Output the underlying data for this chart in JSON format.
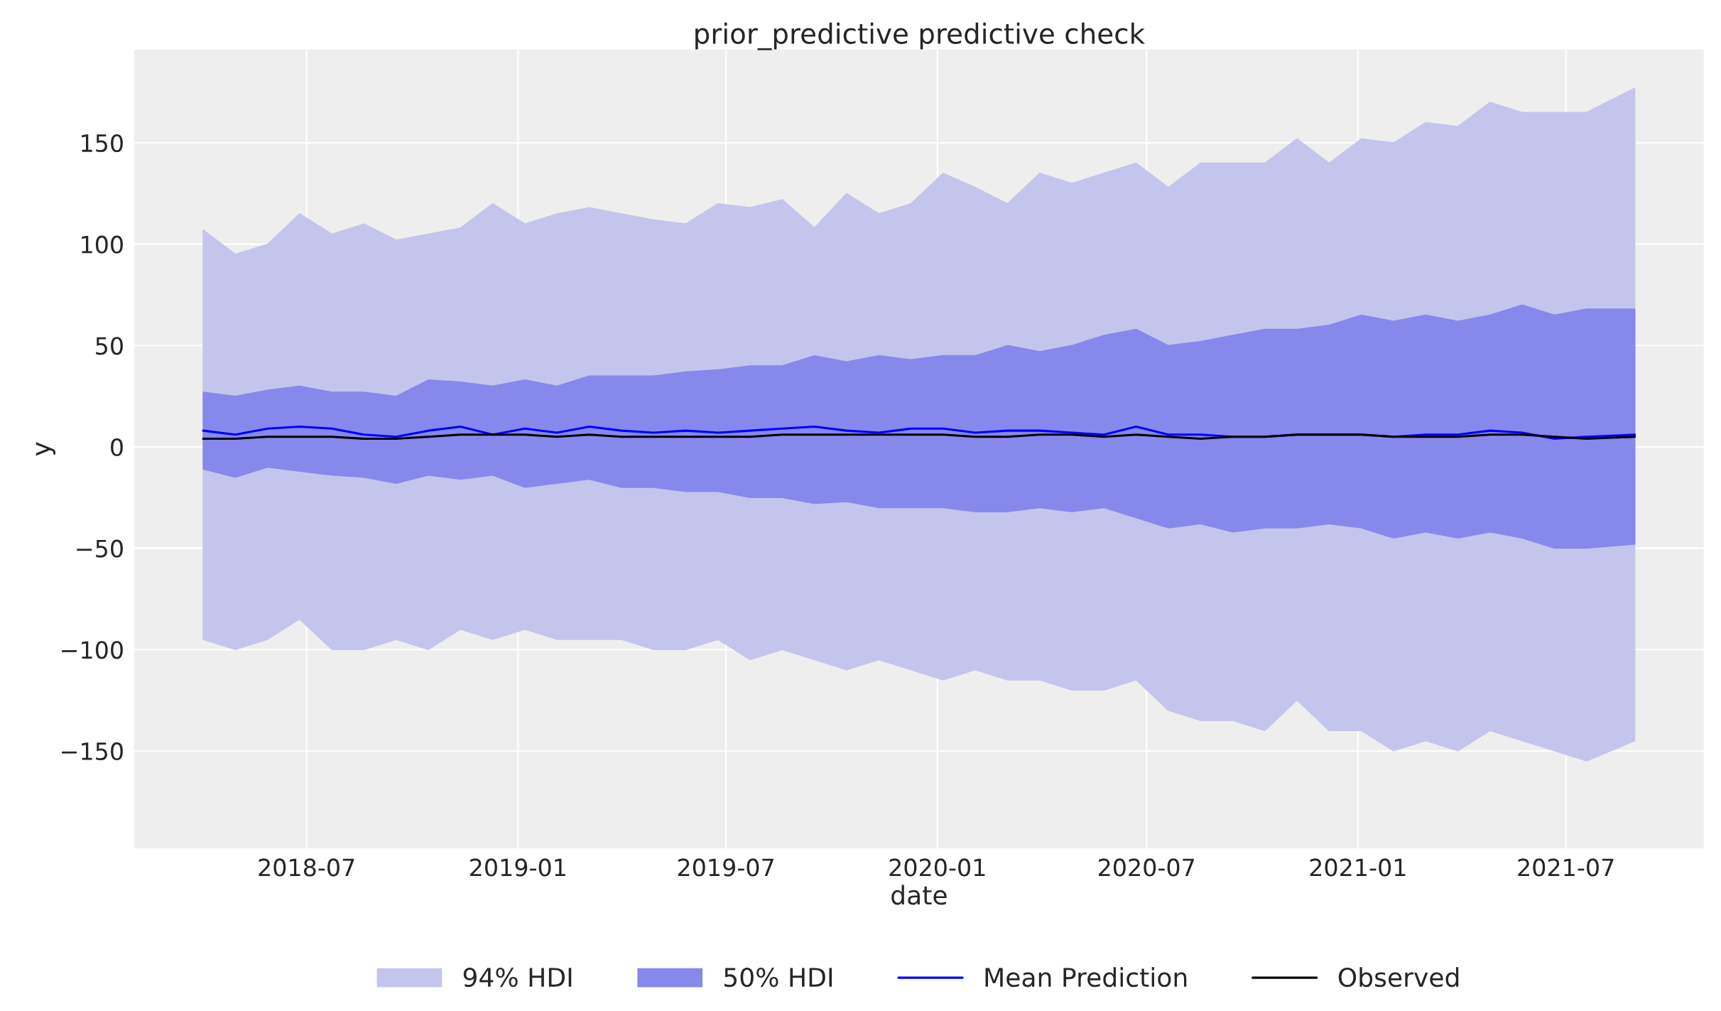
{
  "chart_data": {
    "type": "line",
    "title": "prior_predictive predictive check",
    "xlabel": "date",
    "ylabel": "y",
    "x": [
      "2018-04-02",
      "2018-04-30",
      "2018-05-28",
      "2018-06-25",
      "2018-07-23",
      "2018-08-20",
      "2018-09-17",
      "2018-10-15",
      "2018-11-12",
      "2018-12-10",
      "2019-01-07",
      "2019-02-04",
      "2019-03-04",
      "2019-04-01",
      "2019-04-29",
      "2019-05-27",
      "2019-06-24",
      "2019-07-22",
      "2019-08-19",
      "2019-09-16",
      "2019-10-14",
      "2019-11-11",
      "2019-12-09",
      "2020-01-06",
      "2020-02-03",
      "2020-03-02",
      "2020-03-30",
      "2020-04-27",
      "2020-05-25",
      "2020-06-22",
      "2020-07-20",
      "2020-08-17",
      "2020-09-14",
      "2020-10-12",
      "2020-11-09",
      "2020-12-07",
      "2021-01-04",
      "2021-02-01",
      "2021-03-01",
      "2021-03-29",
      "2021-04-26",
      "2021-05-24",
      "2021-06-21",
      "2021-07-19",
      "2021-08-30"
    ],
    "series": [
      {
        "name": "94% HDI",
        "color": "#c4c5ec",
        "values": [
          null,
          null,
          null,
          null,
          null,
          null,
          null,
          null,
          null,
          null,
          null,
          null,
          null,
          null,
          null,
          null,
          null,
          null,
          null,
          null,
          null,
          null,
          null,
          null,
          null,
          null,
          null,
          null,
          null,
          null,
          null,
          null,
          null,
          null,
          null,
          null,
          null,
          null,
          null,
          null,
          null,
          null,
          null,
          null,
          null
        ],
        "upper": [
          107,
          95,
          100,
          115,
          105,
          110,
          102,
          105,
          108,
          120,
          110,
          115,
          118,
          115,
          112,
          110,
          120,
          118,
          122,
          108,
          125,
          115,
          120,
          135,
          128,
          120,
          135,
          130,
          135,
          140,
          128,
          140,
          140,
          140,
          152,
          140,
          152,
          150,
          160,
          158,
          170,
          165,
          165,
          165,
          177
        ],
        "lower": [
          -95,
          -100,
          -95,
          -85,
          -100,
          -100,
          -95,
          -100,
          -90,
          -95,
          -90,
          -95,
          -95,
          -95,
          -100,
          -100,
          -95,
          -105,
          -100,
          -105,
          -110,
          -105,
          -110,
          -115,
          -110,
          -115,
          -115,
          -120,
          -120,
          -115,
          -130,
          -135,
          -135,
          -140,
          -125,
          -140,
          -140,
          -150,
          -145,
          -150,
          -140,
          -145,
          -150,
          -155,
          -145
        ]
      },
      {
        "name": "50% HDI",
        "color": "#8788ec",
        "values": [
          null,
          null,
          null,
          null,
          null,
          null,
          null,
          null,
          null,
          null,
          null,
          null,
          null,
          null,
          null,
          null,
          null,
          null,
          null,
          null,
          null,
          null,
          null,
          null,
          null,
          null,
          null,
          null,
          null,
          null,
          null,
          null,
          null,
          null,
          null,
          null,
          null,
          null,
          null,
          null,
          null,
          null,
          null,
          null,
          null
        ],
        "upper": [
          27,
          25,
          28,
          30,
          27,
          27,
          25,
          33,
          32,
          30,
          33,
          30,
          35,
          35,
          35,
          37,
          38,
          40,
          40,
          45,
          42,
          45,
          43,
          45,
          45,
          50,
          47,
          50,
          55,
          58,
          50,
          52,
          55,
          58,
          58,
          60,
          65,
          62,
          65,
          62,
          65,
          70,
          65,
          68,
          68
        ],
        "lower": [
          -11,
          -15,
          -10,
          -12,
          -14,
          -15,
          -18,
          -14,
          -16,
          -14,
          -20,
          -18,
          -16,
          -20,
          -20,
          -22,
          -22,
          -25,
          -25,
          -28,
          -27,
          -30,
          -30,
          -30,
          -32,
          -32,
          -30,
          -32,
          -30,
          -35,
          -40,
          -38,
          -42,
          -40,
          -40,
          -38,
          -40,
          -45,
          -42,
          -45,
          -42,
          -45,
          -50,
          -50,
          -48
        ]
      },
      {
        "name": "Mean Prediction",
        "color": "#0000ff",
        "values": [
          8,
          6,
          9,
          10,
          9,
          6,
          5,
          8,
          10,
          6,
          9,
          7,
          10,
          8,
          7,
          8,
          7,
          8,
          9,
          10,
          8,
          7,
          9,
          9,
          7,
          8,
          8,
          7,
          6,
          10,
          6,
          6,
          5,
          5,
          6,
          6,
          6,
          5,
          6,
          6,
          8,
          7,
          4,
          5,
          6
        ]
      },
      {
        "name": "Observed",
        "color": "#000000",
        "values": [
          4,
          4,
          5,
          5,
          5,
          4,
          4,
          5,
          6,
          6,
          6,
          5,
          6,
          5,
          5,
          5,
          5,
          5,
          6,
          6,
          6,
          6,
          6,
          6,
          5,
          5,
          6,
          6,
          5,
          6,
          5,
          4,
          5,
          5,
          6,
          6,
          6,
          5,
          5,
          5,
          6,
          6,
          5,
          4,
          5
        ]
      }
    ],
    "xlim": [
      "2018-02-01",
      "2021-10-29"
    ],
    "xticks": [
      {
        "value": "2018-07-01",
        "label": "2018-07"
      },
      {
        "value": "2019-01-01",
        "label": "2019-01"
      },
      {
        "value": "2019-07-01",
        "label": "2019-07"
      },
      {
        "value": "2020-01-01",
        "label": "2020-01"
      },
      {
        "value": "2020-07-01",
        "label": "2020-07"
      },
      {
        "value": "2021-01-01",
        "label": "2021-01"
      },
      {
        "value": "2021-07-01",
        "label": "2021-07"
      }
    ],
    "ylim": [
      -198,
      196
    ],
    "yticks": [
      {
        "value": -150,
        "label": "−150"
      },
      {
        "value": -100,
        "label": "−100"
      },
      {
        "value": -50,
        "label": "−50"
      },
      0,
      50,
      100,
      150
    ],
    "grid": true,
    "legend": "bottom",
    "marker": "none",
    "line_style": "solid"
  }
}
